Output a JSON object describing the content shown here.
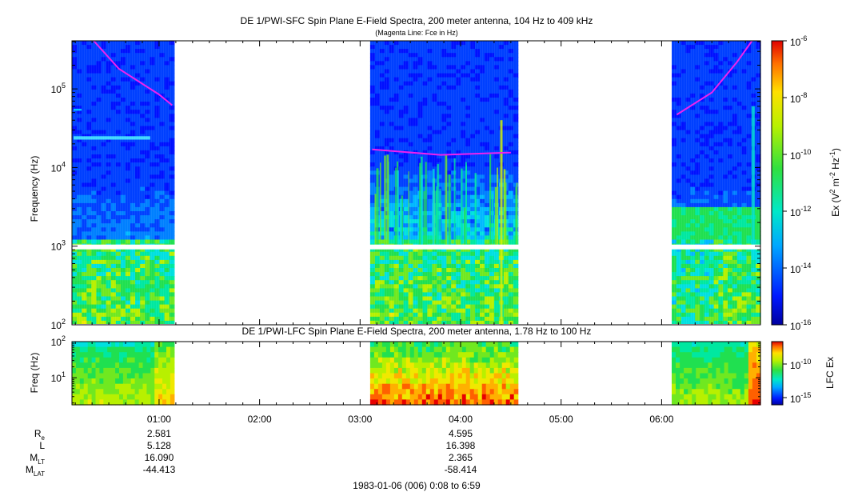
{
  "chart_data": [
    {
      "type": "heatmap",
      "title": "DE 1/PWI-SFC  Spin Plane E-Field Spectra, 200 meter antenna, 104 Hz to 409 kHz",
      "subtitle": "(Magenta Line: Fce in Hz)",
      "ylabel": "Frequency (Hz)",
      "y_scale": "log",
      "ylim": [
        100,
        409000
      ],
      "y_tick_values": [
        100,
        1000,
        10000,
        100000
      ],
      "y_tick_labels": [
        {
          "base": "10",
          "exp": "2"
        },
        {
          "base": "10",
          "exp": "3"
        },
        {
          "base": "10",
          "exp": "4"
        },
        {
          "base": "10",
          "exp": "5"
        }
      ],
      "x_range_hours": [
        0.1333,
        6.9833
      ],
      "data_segments_hours": [
        [
          0.1333,
          1.15
        ],
        [
          3.1,
          4.57
        ],
        [
          6.1,
          6.9833
        ]
      ],
      "fce_line": [
        {
          "segment": 0,
          "points": [
            [
              0.35,
              409000
            ],
            [
              0.6,
              180000
            ],
            [
              1.0,
              85000
            ],
            [
              1.13,
              62000
            ]
          ]
        },
        {
          "segment": 1,
          "points": [
            [
              3.12,
              17000
            ],
            [
              3.8,
              14500
            ],
            [
              4.5,
              15500
            ]
          ]
        },
        {
          "segment": 2,
          "points": [
            [
              6.15,
              47000
            ],
            [
              6.5,
              90000
            ],
            [
              6.75,
              220000
            ],
            [
              6.9,
              409000
            ]
          ]
        }
      ],
      "colorbar": {
        "label": "Ex (V2 m-2 Hz-1)",
        "label_parts": [
          {
            "t": "Ex (V"
          },
          {
            "t": "2",
            "sup": true
          },
          {
            "t": " m"
          },
          {
            "t": "-2",
            "sup": true
          },
          {
            "t": " Hz"
          },
          {
            "t": "-1",
            "sup": true
          },
          {
            "t": ")"
          }
        ],
        "scale": "log",
        "range": [
          1e-16,
          1e-06
        ],
        "tick_labels": [
          {
            "base": "10",
            "exp": "-6"
          },
          {
            "base": "10",
            "exp": "-8"
          },
          {
            "base": "10",
            "exp": "-10"
          },
          {
            "base": "10",
            "exp": "-12"
          },
          {
            "base": "10",
            "exp": "-14"
          },
          {
            "base": "10",
            "exp": "-16"
          }
        ]
      }
    },
    {
      "type": "heatmap",
      "title": "DE 1/PWI-LFC  Spin Plane E-Field Spectra, 200 meter antenna, 1.78 Hz to 100 Hz",
      "ylabel": "Freq (Hz)",
      "y_scale": "log",
      "ylim": [
        1.78,
        100
      ],
      "y_tick_labels": [
        {
          "base": "10",
          "exp": "2"
        },
        {
          "base": "10",
          "exp": "1"
        }
      ],
      "data_segments_hours": [
        [
          0.1333,
          1.15
        ],
        [
          3.1,
          4.57
        ],
        [
          6.1,
          6.9833
        ]
      ],
      "colorbar": {
        "label": "LFC Ex",
        "scale": "log",
        "tick_labels": [
          {
            "base": "10",
            "exp": "-10"
          },
          {
            "base": "10",
            "exp": "-15"
          }
        ]
      }
    }
  ],
  "x_axis": {
    "tick_labels": [
      "01:00",
      "02:00",
      "03:00",
      "04:00",
      "05:00",
      "06:00"
    ],
    "tick_hours": [
      1,
      2,
      3,
      4,
      5,
      6
    ]
  },
  "ephemeris": {
    "rows": [
      {
        "label": {
          "main": "R",
          "sub": "e"
        },
        "values": [
          "2.581",
          "4.595"
        ]
      },
      {
        "label": {
          "main": "L",
          "sub": ""
        },
        "values": [
          "5.128",
          "16.398"
        ]
      },
      {
        "label": {
          "main": "M",
          "sub": "LT"
        },
        "values": [
          "16.090",
          "2.365"
        ]
      },
      {
        "label": {
          "main": "M",
          "sub": "LAT"
        },
        "values": [
          "-44.413",
          "-58.414"
        ]
      }
    ],
    "value_hours": [
      1.0,
      4.0
    ]
  },
  "footer": "1983-01-06 (006) 0:08 to 6:59",
  "colors": {
    "fce_line": "#ee22ee",
    "background": "#ffffff"
  }
}
